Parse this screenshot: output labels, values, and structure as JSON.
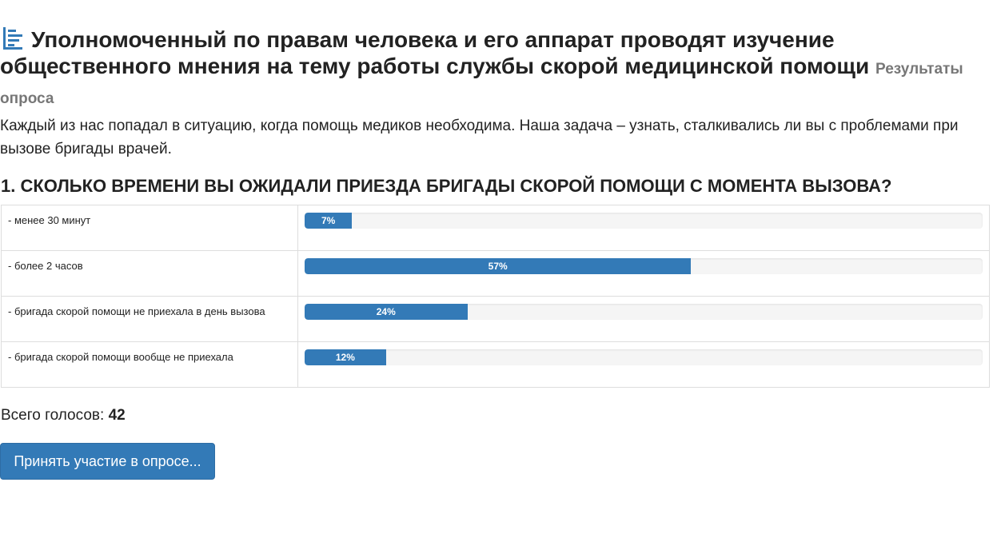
{
  "header": {
    "title": "Уполномоченный по правам человека и его аппарат проводят изучение общественного мнения на тему работы службы скорой медицинской помощи",
    "subtitle": "Результаты опроса",
    "icon": "poll-results-icon"
  },
  "description": "Каждый из нас попадал в ситуацию, когда помощь медиков необходима. Наша задача – узнать, сталкивались ли вы с проблемами при вызове бригады врачей.",
  "question": "1. СКОЛЬКО ВРЕМЕНИ ВЫ ОЖИДАЛИ ПРИЕЗДА БРИГАДЫ СКОРОЙ ПОМОЩИ С МОМЕНТА ВЫЗОВА?",
  "answers": [
    {
      "label": "- менее 30 минут",
      "percent": 7,
      "percent_label": "7%"
    },
    {
      "label": "- более 2 часов",
      "percent": 57,
      "percent_label": "57%"
    },
    {
      "label": "- бригада скорой помощи не приехала в день вызова",
      "percent": 24,
      "percent_label": "24%"
    },
    {
      "label": "- бригада скорой помощи вообще не приехала",
      "percent": 12,
      "percent_label": "12%"
    }
  ],
  "total": {
    "label": "Всего голосов:",
    "value": "42"
  },
  "vote_button_label": "Принять участие в опросе...",
  "colors": {
    "accent": "#337ab7",
    "track": "#f5f5f5",
    "border": "#dddddd",
    "subtitle": "#777777"
  }
}
